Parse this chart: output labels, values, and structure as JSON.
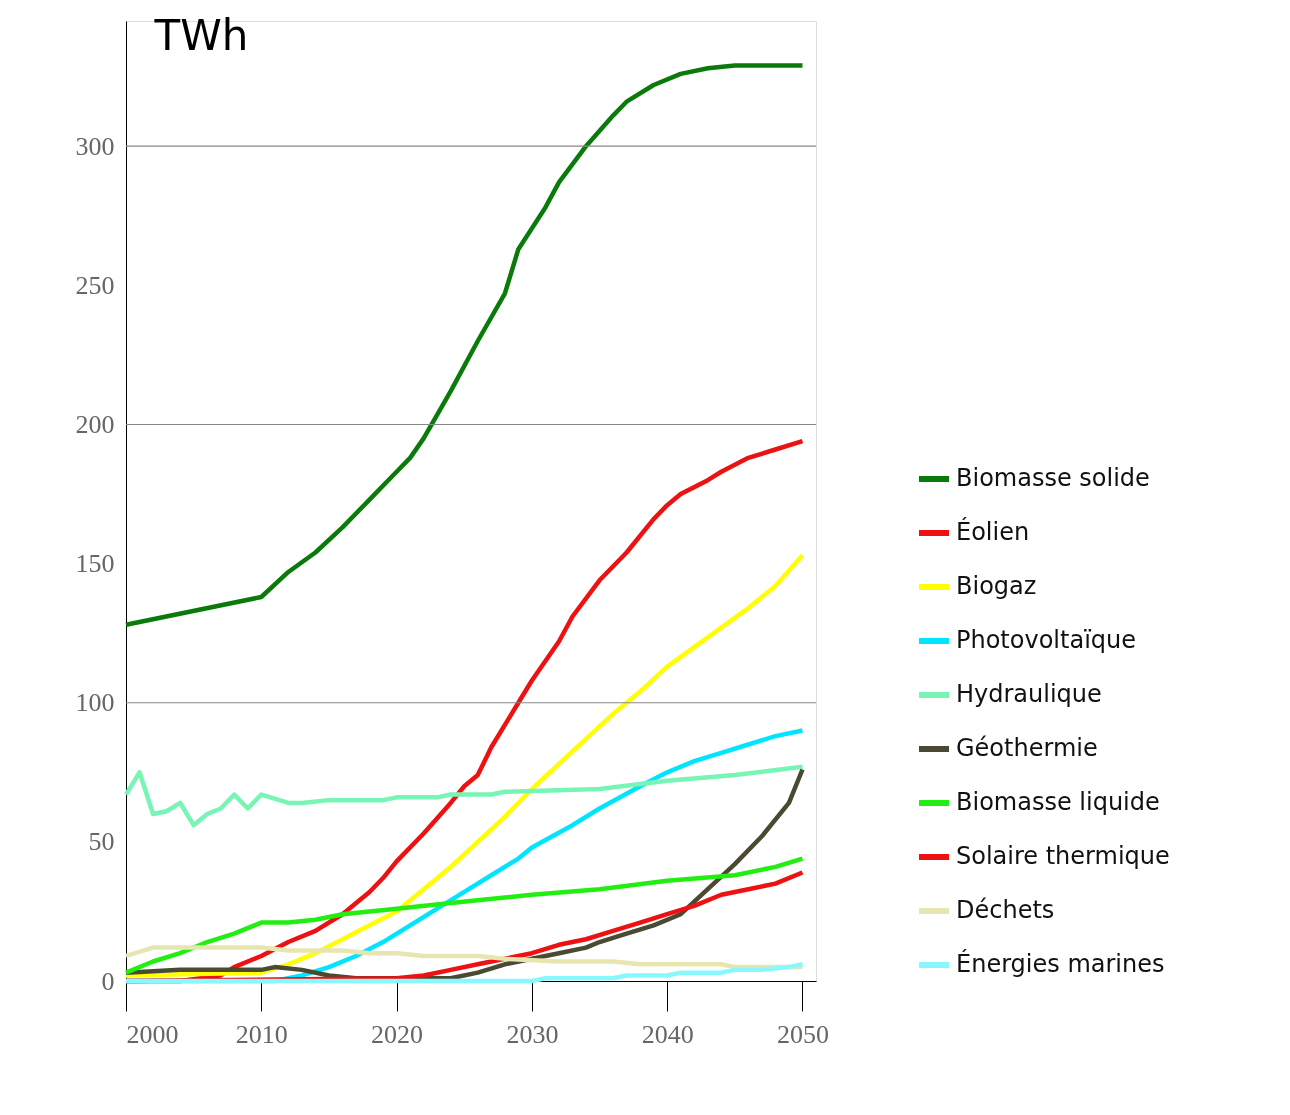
{
  "chart_data": {
    "type": "line",
    "ylabel": "TWh",
    "xlim": [
      2000,
      2051
    ],
    "xticks": [
      2000,
      2010,
      2020,
      2030,
      2040,
      2050
    ],
    "ylim": [
      0,
      345
    ],
    "yticks": [
      0,
      50,
      100,
      150,
      200,
      250,
      300
    ],
    "grid": false,
    "legend": "right",
    "marker": "none",
    "line_style": "solid",
    "ref_lines": [
      {
        "axis": "y",
        "value": 100,
        "color": "#888888"
      },
      {
        "axis": "y",
        "value": 200,
        "color": "#888888"
      },
      {
        "axis": "y",
        "value": 300,
        "color": "#888888"
      }
    ],
    "series": [
      {
        "name": "Biomasse solide",
        "color": "#0a7a0a",
        "x": [
          2000,
          2010,
          2012,
          2014,
          2016,
          2018,
          2020,
          2021,
          2022,
          2024,
          2026,
          2028,
          2029,
          2031,
          2032,
          2034,
          2036,
          2037,
          2039,
          2041,
          2043,
          2045,
          2046,
          2050
        ],
        "values": [
          128,
          138,
          147,
          154,
          163,
          173,
          183,
          188,
          195,
          212,
          230,
          247,
          263,
          278,
          287,
          300,
          311,
          316,
          322,
          326,
          328,
          329,
          329,
          329
        ]
      },
      {
        "name": "Éolien",
        "color": "#ee1111",
        "x": [
          2000,
          2004,
          2007,
          2008,
          2010,
          2012,
          2014,
          2016,
          2018,
          2019,
          2020,
          2022,
          2024,
          2025,
          2026,
          2027,
          2029,
          2030,
          2032,
          2033,
          2035,
          2037,
          2039,
          2040,
          2041,
          2043,
          2044,
          2046,
          2048,
          2050
        ],
        "values": [
          0,
          0,
          2,
          5,
          9,
          14,
          18,
          24,
          32,
          37,
          43,
          53,
          64,
          70,
          74,
          84,
          100,
          108,
          122,
          131,
          144,
          154,
          166,
          171,
          175,
          180,
          183,
          188,
          191,
          194
        ]
      },
      {
        "name": "Biogaz",
        "color": "#ffff00",
        "x": [
          2000,
          2010,
          2012,
          2014,
          2016,
          2018,
          2020,
          2022,
          2024,
          2026,
          2028,
          2030,
          2032,
          2034,
          2036,
          2038,
          2040,
          2042,
          2044,
          2046,
          2048,
          2050
        ],
        "values": [
          2,
          3,
          6,
          10,
          15,
          20,
          25,
          33,
          41,
          50,
          59,
          69,
          78,
          87,
          96,
          104,
          113,
          120,
          127,
          134,
          142,
          153
        ]
      },
      {
        "name": "Photovoltaïque",
        "color": "#00e5ff",
        "x": [
          2000,
          2011,
          2013,
          2015,
          2017,
          2019,
          2021,
          2023,
          2025,
          2027,
          2029,
          2030,
          2033,
          2035,
          2038,
          2040,
          2042,
          2044,
          2046,
          2048,
          2050
        ],
        "values": [
          0,
          0,
          2,
          5,
          9,
          14,
          20,
          26,
          32,
          38,
          44,
          48,
          56,
          62,
          70,
          75,
          79,
          82,
          85,
          88,
          90
        ]
      },
      {
        "name": "Hydraulique",
        "color": "#77f5b5",
        "x": [
          2000,
          2001,
          2002,
          2003,
          2004,
          2005,
          2006,
          2007,
          2008,
          2009,
          2010,
          2012,
          2013,
          2015,
          2019,
          2020,
          2023,
          2024,
          2027,
          2028,
          2035,
          2040,
          2045,
          2050
        ],
        "values": [
          67,
          75,
          60,
          61,
          64,
          56,
          60,
          62,
          67,
          62,
          67,
          64,
          64,
          65,
          65,
          66,
          66,
          67,
          67,
          68,
          69,
          72,
          74,
          77
        ]
      },
      {
        "name": "Géothermie",
        "color": "#4a4a32",
        "x": [
          2000,
          2004,
          2010,
          2011,
          2013,
          2015,
          2017,
          2024,
          2026,
          2028,
          2030,
          2032,
          2034,
          2035,
          2037,
          2039,
          2041,
          2043,
          2045,
          2047,
          2049,
          2050
        ],
        "values": [
          3,
          4,
          4,
          5,
          4,
          2,
          1,
          1,
          3,
          6,
          8,
          10,
          12,
          14,
          17,
          20,
          24,
          33,
          42,
          52,
          64,
          76
        ]
      },
      {
        "name": "Biomasse liquide",
        "color": "#22ee11",
        "x": [
          2000,
          2002,
          2004,
          2006,
          2008,
          2010,
          2012,
          2014,
          2016,
          2018,
          2020,
          2024,
          2026,
          2028,
          2030,
          2035,
          2040,
          2045,
          2048,
          2050
        ],
        "values": [
          3,
          7,
          10,
          14,
          17,
          21,
          21,
          22,
          24,
          25,
          26,
          28,
          29,
          30,
          31,
          33,
          36,
          38,
          41,
          44
        ]
      },
      {
        "name": "Solaire thermique",
        "color": "#ee1111",
        "x": [
          2000,
          2020,
          2022,
          2024,
          2026,
          2028,
          2030,
          2032,
          2034,
          2036,
          2038,
          2040,
          2042,
          2044,
          2046,
          2048,
          2050
        ],
        "values": [
          0,
          1,
          2,
          4,
          6,
          8,
          10,
          13,
          15,
          18,
          21,
          24,
          27,
          31,
          33,
          35,
          39
        ]
      },
      {
        "name": "Déchets",
        "color": "#e8e6b0",
        "x": [
          2000,
          2002,
          2010,
          2012,
          2016,
          2018,
          2020,
          2022,
          2026,
          2028,
          2032,
          2036,
          2038,
          2044,
          2045,
          2050
        ],
        "values": [
          9,
          12,
          12,
          11,
          11,
          10,
          10,
          9,
          9,
          8,
          7,
          7,
          6,
          6,
          5,
          5
        ]
      },
      {
        "name": "Énergies marines",
        "color": "#88f8ff",
        "x": [
          2000,
          2030,
          2031,
          2036,
          2037,
          2040,
          2041,
          2044,
          2045,
          2047,
          2049,
          2050
        ],
        "values": [
          0,
          0,
          1,
          1,
          2,
          2,
          3,
          3,
          4,
          4,
          5,
          6
        ]
      }
    ]
  }
}
